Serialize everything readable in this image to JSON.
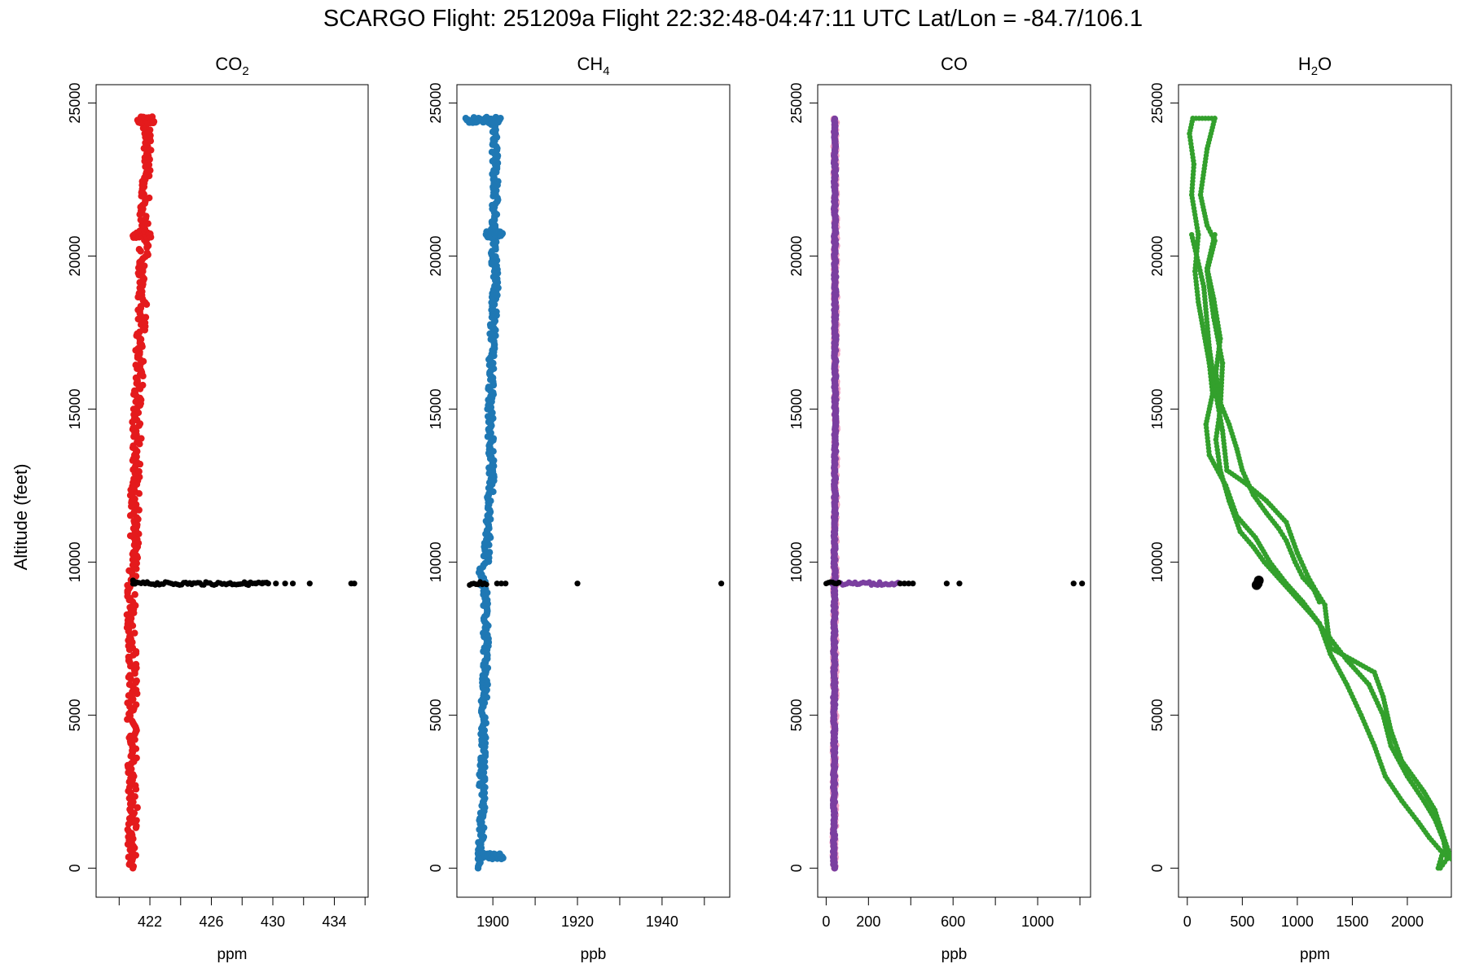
{
  "figure": {
    "title": "SCARGO Flight: 251209a  Flight  22:32:48-04:47:11 UTC  Lat/Lon = -84.7/106.1",
    "ylabel": "Altitude (feet)"
  },
  "chart_data": [
    {
      "type": "scatter",
      "title_base": "CO",
      "title_sub": "2",
      "title_tail": "",
      "xlabel": "ppm",
      "ylabel": "Altitude (feet)",
      "xlim": [
        418.5,
        436.2
      ],
      "ylim": [
        -950,
        25600
      ],
      "xticks": [
        420,
        422,
        424,
        426,
        428,
        430,
        432,
        434,
        436
      ],
      "xtick_labels": [
        "",
        "422",
        "",
        "426",
        "",
        "430",
        "",
        "434",
        ""
      ],
      "yticks": [
        0,
        5000,
        10000,
        15000,
        20000,
        25000
      ],
      "ytick_labels": [
        "0",
        "5000",
        "10000",
        "15000",
        "20000",
        "25000"
      ],
      "grid": false,
      "series": [
        {
          "color": "#e41a1c",
          "style": "profile",
          "profile": [
            [
              0,
              420.9
            ],
            [
              1000,
              420.8
            ],
            [
              2000,
              420.9
            ],
            [
              3000,
              420.8
            ],
            [
              4000,
              420.9
            ],
            [
              5000,
              420.8
            ],
            [
              6000,
              420.9
            ],
            [
              7000,
              420.9
            ],
            [
              8000,
              420.8
            ],
            [
              9000,
              420.8
            ],
            [
              10000,
              420.9
            ],
            [
              11000,
              421.0
            ],
            [
              12000,
              421.0
            ],
            [
              13000,
              421.1
            ],
            [
              14000,
              421.2
            ],
            [
              15000,
              421.1
            ],
            [
              16000,
              421.3
            ],
            [
              17000,
              421.3
            ],
            [
              18000,
              421.5
            ],
            [
              19000,
              421.5
            ],
            [
              20000,
              421.6
            ],
            [
              21000,
              421.6
            ],
            [
              22000,
              421.7
            ],
            [
              23000,
              421.8
            ],
            [
              24000,
              421.9
            ],
            [
              24500,
              421.7
            ]
          ],
          "width": 0.6,
          "loops": [
            [
              20700,
              420.9,
              422.1
            ],
            [
              24450,
              421.2,
              422.3
            ]
          ]
        },
        {
          "color": "#000000",
          "style": "outliers",
          "y": 9300,
          "range": [
            420.9,
            429.6
          ],
          "points": [
            [
              420.9,
              9400
            ],
            [
              421.0,
              9350
            ],
            [
              428.4,
              9300
            ],
            [
              428.9,
              9300
            ],
            [
              429.3,
              9300
            ],
            [
              429.7,
              9300
            ],
            [
              430.2,
              9300
            ],
            [
              430.8,
              9300
            ],
            [
              431.3,
              9300
            ],
            [
              432.4,
              9300
            ],
            [
              435.1,
              9300
            ],
            [
              435.3,
              9300
            ]
          ]
        }
      ]
    },
    {
      "type": "scatter",
      "title_base": "CH",
      "title_sub": "4",
      "title_tail": "",
      "xlabel": "ppb",
      "ylabel": "",
      "xlim": [
        1891.5,
        1956
      ],
      "ylim": [
        -950,
        25600
      ],
      "xticks": [
        1890,
        1900,
        1910,
        1920,
        1930,
        1940,
        1950
      ],
      "xtick_labels": [
        "",
        "1900",
        "",
        "1920",
        "",
        "1940",
        ""
      ],
      "yticks": [
        0,
        5000,
        10000,
        15000,
        20000,
        25000
      ],
      "ytick_labels": [
        "0",
        "5000",
        "10000",
        "15000",
        "20000",
        "25000"
      ],
      "grid": false,
      "series": [
        {
          "color": "#1f78b4",
          "style": "profile",
          "profile": [
            [
              0,
              1897.0
            ],
            [
              1000,
              1897.2
            ],
            [
              2000,
              1897.6
            ],
            [
              3000,
              1897.4
            ],
            [
              4000,
              1897.9
            ],
            [
              5000,
              1897.8
            ],
            [
              6000,
              1898.1
            ],
            [
              7000,
              1898.3
            ],
            [
              8000,
              1898.4
            ],
            [
              9000,
              1898.2
            ],
            [
              9700,
              1897.0
            ],
            [
              10000,
              1898.4
            ],
            [
              11000,
              1898.9
            ],
            [
              12000,
              1899.3
            ],
            [
              13000,
              1899.7
            ],
            [
              14000,
              1899.5
            ],
            [
              15000,
              1899.4
            ],
            [
              16000,
              1899.6
            ],
            [
              17000,
              1899.8
            ],
            [
              18000,
              1900.2
            ],
            [
              19000,
              1900.6
            ],
            [
              20000,
              1900.3
            ],
            [
              21000,
              1900.2
            ],
            [
              22000,
              1900.7
            ],
            [
              23000,
              1900.5
            ],
            [
              24000,
              1900.4
            ],
            [
              24500,
              1900.0
            ]
          ],
          "width": 1.4,
          "loops": [
            [
              400,
              1896.8,
              1902.6
            ],
            [
              20700,
              1898.4,
              1902.4
            ],
            [
              24450,
              1893.6,
              1901.8
            ]
          ]
        },
        {
          "color": "#000000",
          "style": "outliers",
          "y": 9300,
          "range": [
            1894.5,
            1898.5
          ],
          "points": [
            [
              1901.0,
              9300
            ],
            [
              1902.0,
              9300
            ],
            [
              1903.0,
              9300
            ],
            [
              1920.0,
              9300
            ],
            [
              1954.0,
              9300
            ]
          ]
        }
      ]
    },
    {
      "type": "scatter",
      "title_base": "CO",
      "title_sub": "",
      "title_tail": "",
      "xlabel": "ppb",
      "ylabel": "",
      "xlim": [
        -40,
        1250
      ],
      "ylim": [
        -950,
        25600
      ],
      "xticks": [
        0,
        200,
        400,
        600,
        800,
        1000,
        1200
      ],
      "xtick_labels": [
        "0",
        "200",
        "",
        "600",
        "",
        "1000",
        ""
      ],
      "yticks": [
        0,
        5000,
        10000,
        15000,
        20000,
        25000
      ],
      "ytick_labels": [
        "0",
        "5000",
        "10000",
        "15000",
        "20000",
        "25000"
      ],
      "grid": false,
      "series": [
        {
          "color": "#f4a6c8",
          "style": "profile",
          "profile": [
            [
              0,
              38
            ],
            [
              5000,
              40
            ],
            [
              10000,
              42
            ],
            [
              15000,
              45
            ],
            [
              20000,
              44
            ],
            [
              24500,
              42
            ]
          ],
          "width": 14
        },
        {
          "color": "#7b3fa0",
          "style": "profile",
          "profile": [
            [
              0,
              37
            ],
            [
              5000,
              38
            ],
            [
              10000,
              40
            ],
            [
              15000,
              43
            ],
            [
              20000,
              42
            ],
            [
              24500,
              40
            ]
          ],
          "width": 8
        },
        {
          "color": "#7b3fa0",
          "style": "outliers",
          "y": 9300,
          "range": [
            30,
            340
          ],
          "points": []
        },
        {
          "color": "#000000",
          "style": "outliers",
          "y": 9300,
          "range": [
            0,
            60
          ],
          "points": [
            [
              350,
              9300
            ],
            [
              370,
              9300
            ],
            [
              390,
              9300
            ],
            [
              410,
              9300
            ],
            [
              570,
              9300
            ],
            [
              630,
              9300
            ],
            [
              1170,
              9300
            ],
            [
              1210,
              9300
            ]
          ]
        }
      ]
    },
    {
      "type": "scatter",
      "title_base": "H",
      "title_sub": "2",
      "title_tail": "O",
      "xlabel": "ppm",
      "ylabel": "",
      "xlim": [
        -80,
        2400
      ],
      "ylim": [
        -950,
        25600
      ],
      "xticks": [
        0,
        500,
        1000,
        1500,
        2000
      ],
      "xtick_labels": [
        "0",
        "500",
        "1000",
        "1500",
        "2000"
      ],
      "yticks": [
        0,
        5000,
        10000,
        15000,
        20000,
        25000
      ],
      "ytick_labels": [
        "0",
        "5000",
        "10000",
        "15000",
        "20000",
        "25000"
      ],
      "grid": false,
      "series": [
        {
          "color": "#33a02c",
          "style": "path",
          "points": [
            [
              2280,
              0
            ],
            [
              2320,
              500
            ],
            [
              2200,
              1000
            ],
            [
              2100,
              1500
            ],
            [
              1950,
              2200
            ],
            [
              1800,
              3000
            ],
            [
              1700,
              4000
            ],
            [
              1580,
              5000
            ],
            [
              1450,
              6000
            ],
            [
              1300,
              7000
            ],
            [
              1200,
              8000
            ],
            [
              1050,
              8700
            ],
            [
              900,
              9300
            ],
            [
              750,
              10000
            ],
            [
              620,
              10800
            ],
            [
              450,
              11500
            ],
            [
              350,
              12500
            ],
            [
              200,
              13500
            ],
            [
              170,
              14500
            ],
            [
              230,
              15500
            ],
            [
              200,
              16500
            ],
            [
              150,
              17500
            ],
            [
              100,
              18500
            ],
            [
              70,
              19500
            ],
            [
              100,
              20700
            ],
            [
              40,
              22000
            ],
            [
              60,
              23000
            ],
            [
              20,
              24000
            ],
            [
              50,
              24500
            ],
            [
              250,
              24500
            ],
            [
              180,
              23500
            ],
            [
              120,
              22000
            ],
            [
              180,
              21000
            ],
            [
              250,
              20500
            ],
            [
              180,
              19500
            ],
            [
              240,
              18000
            ],
            [
              320,
              16500
            ],
            [
              300,
              15000
            ],
            [
              260,
              14000
            ],
            [
              300,
              13000
            ],
            [
              380,
              12000
            ],
            [
              480,
              11000
            ],
            [
              600,
              10500
            ],
            [
              700,
              10000
            ],
            [
              850,
              9400
            ],
            [
              1000,
              8800
            ],
            [
              1150,
              8200
            ],
            [
              1300,
              7500
            ],
            [
              1450,
              6800
            ],
            [
              1650,
              6000
            ],
            [
              1780,
              5000
            ],
            [
              1850,
              4000
            ],
            [
              2000,
              3000
            ],
            [
              2150,
              2200
            ],
            [
              2250,
              1600
            ],
            [
              2330,
              900
            ],
            [
              2360,
              300
            ],
            [
              2300,
              0
            ]
          ]
        },
        {
          "color": "#33a02c",
          "style": "path",
          "points": [
            [
              40,
              20700
            ],
            [
              150,
              19000
            ],
            [
              200,
              17000
            ],
            [
              260,
              15500
            ],
            [
              320,
              14300
            ],
            [
              360,
              13000
            ],
            [
              520,
              12600
            ],
            [
              720,
              12000
            ],
            [
              900,
              11300
            ],
            [
              1000,
              10300
            ],
            [
              1100,
              9500
            ],
            [
              1180,
              9000
            ],
            [
              1250,
              8600
            ],
            [
              1270,
              8000
            ],
            [
              1300,
              7200
            ],
            [
              1500,
              6800
            ],
            [
              1700,
              6400
            ],
            [
              1780,
              5600
            ],
            [
              1850,
              4500
            ],
            [
              1950,
              3500
            ],
            [
              2150,
              2500
            ],
            [
              2250,
              1900
            ],
            [
              2350,
              800
            ],
            [
              2400,
              300
            ]
          ]
        },
        {
          "color": "#33a02c",
          "style": "path",
          "points": [
            [
              250,
              20700
            ],
            [
              180,
              19600
            ],
            [
              240,
              18600
            ],
            [
              300,
              17300
            ],
            [
              260,
              16200
            ],
            [
              300,
              15200
            ],
            [
              380,
              14500
            ],
            [
              450,
              13700
            ],
            [
              500,
              13000
            ],
            [
              600,
              12200
            ],
            [
              720,
              11600
            ],
            [
              830,
              11100
            ],
            [
              900,
              10700
            ],
            [
              980,
              10000
            ],
            [
              1050,
              9500
            ],
            [
              1150,
              9100
            ],
            [
              1200,
              8700
            ]
          ]
        },
        {
          "color": "#000000",
          "style": "outliers",
          "y": 9300,
          "range": [
            640,
            640
          ],
          "points": [
            [
              640,
              9300
            ],
            [
              650,
              9400
            ],
            [
              630,
              9250
            ]
          ]
        }
      ]
    }
  ]
}
